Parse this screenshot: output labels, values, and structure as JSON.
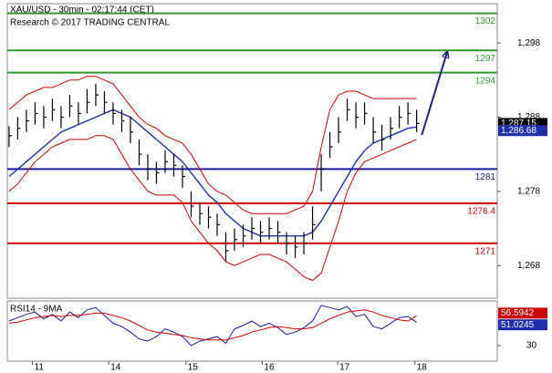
{
  "chart_data": {
    "type": "ohlc",
    "title": "XAU/USD - 30min - 02:17:44 (CET)",
    "subtitle": "Research © 2017 TRADING CENTRAL",
    "xlim": [
      -0.2,
      56.3
    ],
    "xticks": [
      {
        "value": 2.7,
        "label": "11"
      },
      {
        "value": 11.5,
        "label": "14"
      },
      {
        "value": 20.4,
        "label": "15"
      },
      {
        "value": 29.2,
        "label": "16"
      },
      {
        "value": 37.9,
        "label": "17"
      },
      {
        "value": 46.8,
        "label": "18"
      }
    ],
    "ylim": [
      1263.6,
      1303.3
    ],
    "yticks": [
      {
        "value": 1268,
        "label": "1,268"
      },
      {
        "value": 1278,
        "label": "1,278"
      },
      {
        "value": 1288,
        "label": "1,288"
      },
      {
        "value": 1298,
        "label": "1,298"
      }
    ],
    "color": "#000000",
    "close": [
      1285.5,
      1286.5,
      1287.5,
      1288.5,
      1288,
      1289,
      1288,
      1289.5,
      1288.5,
      1290,
      1291,
      1290,
      1288.5,
      1287.5,
      1286,
      1283,
      1281,
      1280.5,
      1282,
      1281.5,
      1280,
      1276,
      1275,
      1274.5,
      1273.5,
      1270,
      1271.5,
      1272,
      1273,
      1272.5,
      1273,
      1272.5,
      1271,
      1270.5,
      1271,
      1273.5,
      1281,
      1284,
      1286,
      1289,
      1288,
      1288.5,
      1286,
      1285,
      1286.5,
      1288,
      1288.5,
      1287.15
    ],
    "high": [
      1286.8,
      1288,
      1289,
      1290,
      1289.5,
      1290.5,
      1289.5,
      1291,
      1290,
      1291.8,
      1292.5,
      1291.5,
      1290,
      1289,
      1288,
      1285,
      1283,
      1282,
      1283.5,
      1283,
      1281.5,
      1278,
      1276.5,
      1276,
      1275,
      1272.5,
      1273,
      1273.5,
      1274.5,
      1274,
      1274.5,
      1274,
      1272.5,
      1272,
      1272.5,
      1276,
      1283,
      1286,
      1288,
      1290.5,
      1290,
      1290,
      1288,
      1287,
      1288,
      1289.5,
      1290,
      1289
    ],
    "low": [
      1284,
      1285,
      1286,
      1287,
      1286.5,
      1287.5,
      1286.5,
      1288,
      1287,
      1288.5,
      1289.5,
      1288.5,
      1287,
      1286,
      1284.5,
      1281.5,
      1279.5,
      1279,
      1280.5,
      1280,
      1278.5,
      1274.5,
      1273.5,
      1273,
      1272,
      1268.5,
      1270,
      1270.5,
      1271.5,
      1271,
      1271.5,
      1271,
      1269.5,
      1269,
      1269.5,
      1271.5,
      1278,
      1282.5,
      1284.5,
      1287.5,
      1286.5,
      1287,
      1284.5,
      1283.5,
      1285,
      1286.5,
      1287,
      1286
    ],
    "overlays": [
      {
        "color": "#cc0000",
        "values": [
          1289,
          1290,
          1291,
          1291.5,
          1292,
          1292,
          1292.5,
          1293,
          1293,
          1293.5,
          1293.5,
          1293,
          1292.5,
          1291,
          1289.5,
          1288,
          1287,
          1286.5,
          1285.5,
          1285,
          1284.5,
          1283,
          1281,
          1279,
          1278,
          1277.5,
          1276.5,
          1275.5,
          1275,
          1275,
          1275,
          1275,
          1275,
          1275.5,
          1276,
          1278,
          1284,
          1289,
          1291,
          1291.5,
          1291.5,
          1291,
          1290.5,
          1290.5,
          1290.5,
          1290.5,
          1290.5,
          1290.5
        ]
      },
      {
        "color": "#cc0000",
        "values": [
          1278,
          1279,
          1280.5,
          1282,
          1283,
          1284,
          1284.5,
          1285,
          1285,
          1285,
          1285.5,
          1285.5,
          1285,
          1283,
          1281,
          1279.5,
          1278,
          1277.5,
          1277.5,
          1277.5,
          1276.5,
          1274,
          1272.5,
          1271,
          1270,
          1268.5,
          1268,
          1268.5,
          1269,
          1269.5,
          1269.5,
          1269,
          1268.5,
          1267.5,
          1266.5,
          1266,
          1267,
          1270.5,
          1274,
          1278,
          1280.5,
          1282,
          1282.5,
          1283,
          1283.5,
          1284,
          1284.5,
          1285
        ]
      },
      {
        "color": "#1f2fa8",
        "values": [
          1280,
          1281,
          1282,
          1283,
          1284,
          1285,
          1286,
          1286.5,
          1287,
          1287.5,
          1288,
          1288.5,
          1289,
          1288.5,
          1288,
          1287,
          1286,
          1285,
          1284,
          1283,
          1282,
          1280.5,
          1279,
          1277.5,
          1276.5,
          1275,
          1274,
          1273,
          1272.5,
          1272,
          1272,
          1272,
          1272,
          1272,
          1272,
          1272.5,
          1274,
          1276,
          1278,
          1280,
          1282,
          1283.5,
          1284.5,
          1285,
          1285.5,
          1286,
          1286.5,
          1286.68
        ]
      }
    ],
    "levels": [
      {
        "value": 1302,
        "color": "#2e9a2e"
      },
      {
        "value": 1297,
        "color": "#2e9a2e"
      },
      {
        "value": 1294,
        "color": "#2e9a2e"
      },
      {
        "value": 1281,
        "color": "#1a1a9a"
      },
      {
        "value": 1276.4,
        "color": "#cc0000"
      },
      {
        "value": 1271,
        "color": "#cc0000"
      }
    ],
    "price_labels": [
      {
        "value": 1287.15,
        "label": "1,287.15",
        "color": "#000000"
      },
      {
        "value": 1286.68,
        "label": "1,286.68",
        "color": "#1f2fa8"
      }
    ],
    "forecast": {
      "x": [
        47.6,
        50.5
      ],
      "values": [
        1285.6,
        1296.7
      ],
      "color": "#1a237e"
    },
    "rsi": {
      "title": "RSI14 - 9MA",
      "ylim": [
        16,
        70
      ],
      "yticks": [
        30
      ],
      "lines": [
        {
          "color": "#1a1a9a",
          "values": [
            52,
            55,
            58,
            60,
            54,
            58,
            52,
            60,
            55,
            62,
            64,
            57,
            50,
            47,
            42,
            36,
            34,
            38,
            45,
            42,
            38,
            30,
            34,
            36,
            38,
            32,
            45,
            48,
            52,
            47,
            50,
            46,
            40,
            42,
            46,
            52,
            66,
            64,
            62,
            65,
            56,
            58,
            47,
            45,
            50,
            55,
            56,
            51.0245
          ]
        },
        {
          "color": "#cc0000",
          "values": [
            50,
            51,
            53,
            55,
            56,
            57,
            56,
            57,
            57,
            58,
            59,
            59,
            57,
            55,
            52,
            48,
            44,
            42,
            41,
            40,
            39,
            37,
            36,
            35,
            35,
            35,
            37,
            39,
            42,
            44,
            46,
            47,
            46,
            45,
            45,
            46,
            50,
            54,
            57,
            60,
            61,
            62,
            60,
            57,
            55,
            53,
            52,
            56.5942
          ]
        }
      ],
      "labels": [
        {
          "value": 56.5942,
          "color": "#cc0000"
        },
        {
          "value": 51.0245,
          "color": "#1f2fa8"
        }
      ]
    }
  }
}
